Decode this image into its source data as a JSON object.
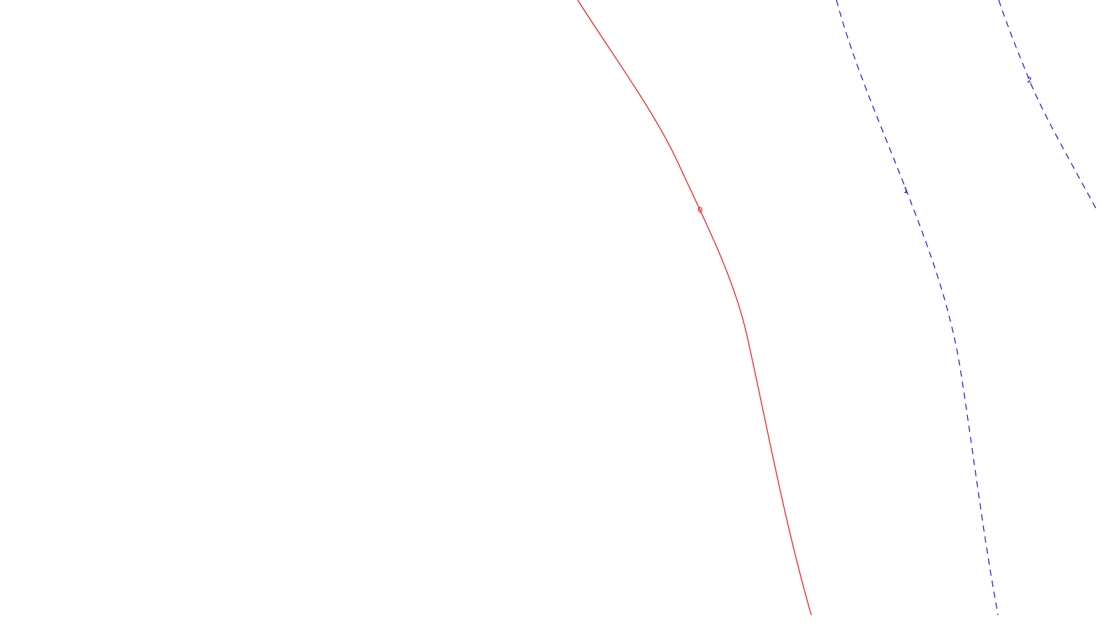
{
  "chart_data": {
    "type": "contour",
    "title": "",
    "xlabel": "",
    "ylabel": "",
    "axes_visible": false,
    "grid": false,
    "background": "#ffffff",
    "levels": [
      {
        "level": 0,
        "label": "0",
        "color": "#ff0000",
        "dash": "solid"
      },
      {
        "level": 1,
        "label": "1",
        "color": "#0000ff",
        "dash": "dashed"
      },
      {
        "level": 2,
        "label": "2",
        "color": "#0000ff",
        "dash": "dashed"
      }
    ]
  }
}
